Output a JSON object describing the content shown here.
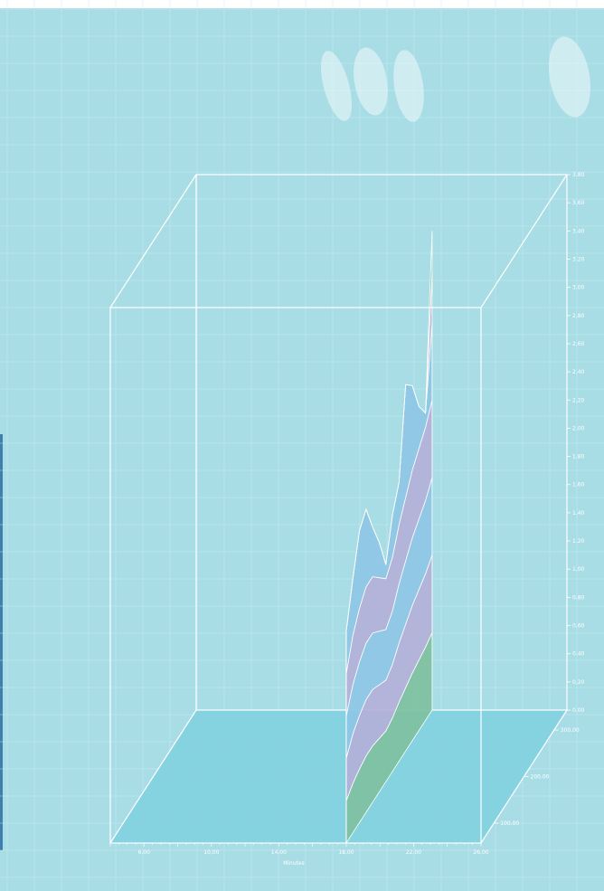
{
  "chart_data": {
    "type": "area",
    "style": "3d-stacked-ribbon",
    "xlabel": "Minutes",
    "x_ticks": [
      "6,00",
      "10,00",
      "14,00",
      "18,00",
      "22,00",
      "26,00"
    ],
    "y_ticks": [
      "0,00",
      "0,20",
      "0,40",
      "0,60",
      "0,80",
      "1,00",
      "1,20",
      "1,40",
      "1,60",
      "1,80",
      "2,00",
      "2,20",
      "2,40",
      "2,60",
      "2,80",
      "3,00",
      "3,20",
      "3,40",
      "3,60",
      "3,80"
    ],
    "z_ticks": [
      "300,00",
      "200,00",
      "100,00"
    ],
    "ylim": [
      0,
      3.8
    ],
    "x": [
      18.0,
      18.3,
      18.6,
      19.0,
      19.4,
      19.8,
      20.2,
      20.6,
      21.0,
      21.3,
      21.5,
      21.7,
      21.9,
      22.1
    ],
    "series": [
      {
        "color": "#7fc0a0",
        "values": [
          0.3,
          0.35,
          0.38,
          0.4,
          0.4,
          0.38,
          0.36,
          0.38,
          0.42,
          0.45,
          0.48,
          0.5,
          0.52,
          0.55
        ]
      },
      {
        "color": "#b4b0d8",
        "values": [
          0.3,
          0.35,
          0.38,
          0.4,
          0.4,
          0.38,
          0.36,
          0.38,
          0.42,
          0.45,
          0.48,
          0.5,
          0.52,
          0.55
        ]
      },
      {
        "color": "#8ec6e6",
        "values": [
          0.3,
          0.35,
          0.38,
          0.4,
          0.4,
          0.38,
          0.36,
          0.38,
          0.42,
          0.45,
          0.48,
          0.5,
          0.52,
          0.55
        ]
      },
      {
        "color": "#b4b0d8",
        "values": [
          0.3,
          0.35,
          0.38,
          0.4,
          0.4,
          0.38,
          0.36,
          0.38,
          0.42,
          0.45,
          0.48,
          0.5,
          0.52,
          0.55
        ]
      },
      {
        "color": "#8ec6e6",
        "values": [
          0.3,
          0.4,
          0.55,
          0.55,
          0.35,
          0.25,
          0.1,
          0.3,
          0.3,
          0.8,
          0.6,
          0.3,
          0.1,
          0.55
        ]
      },
      {
        "color": "#b4b0d8",
        "values": [
          0.0,
          0.0,
          0.0,
          0.0,
          0.0,
          0.0,
          0.0,
          0.0,
          0.0,
          0.0,
          0.0,
          0.0,
          0.0,
          0.35
        ]
      },
      {
        "color": "#7fc0a0",
        "values": [
          0.0,
          0.0,
          0.0,
          0.0,
          0.0,
          0.0,
          0.0,
          0.0,
          0.0,
          0.0,
          0.0,
          0.0,
          0.0,
          0.3
        ]
      }
    ],
    "colors": {
      "background": "#a9dde6",
      "grid": "#c6ebf1",
      "floor": "#7fd0df",
      "frame": "#ffffff"
    }
  }
}
